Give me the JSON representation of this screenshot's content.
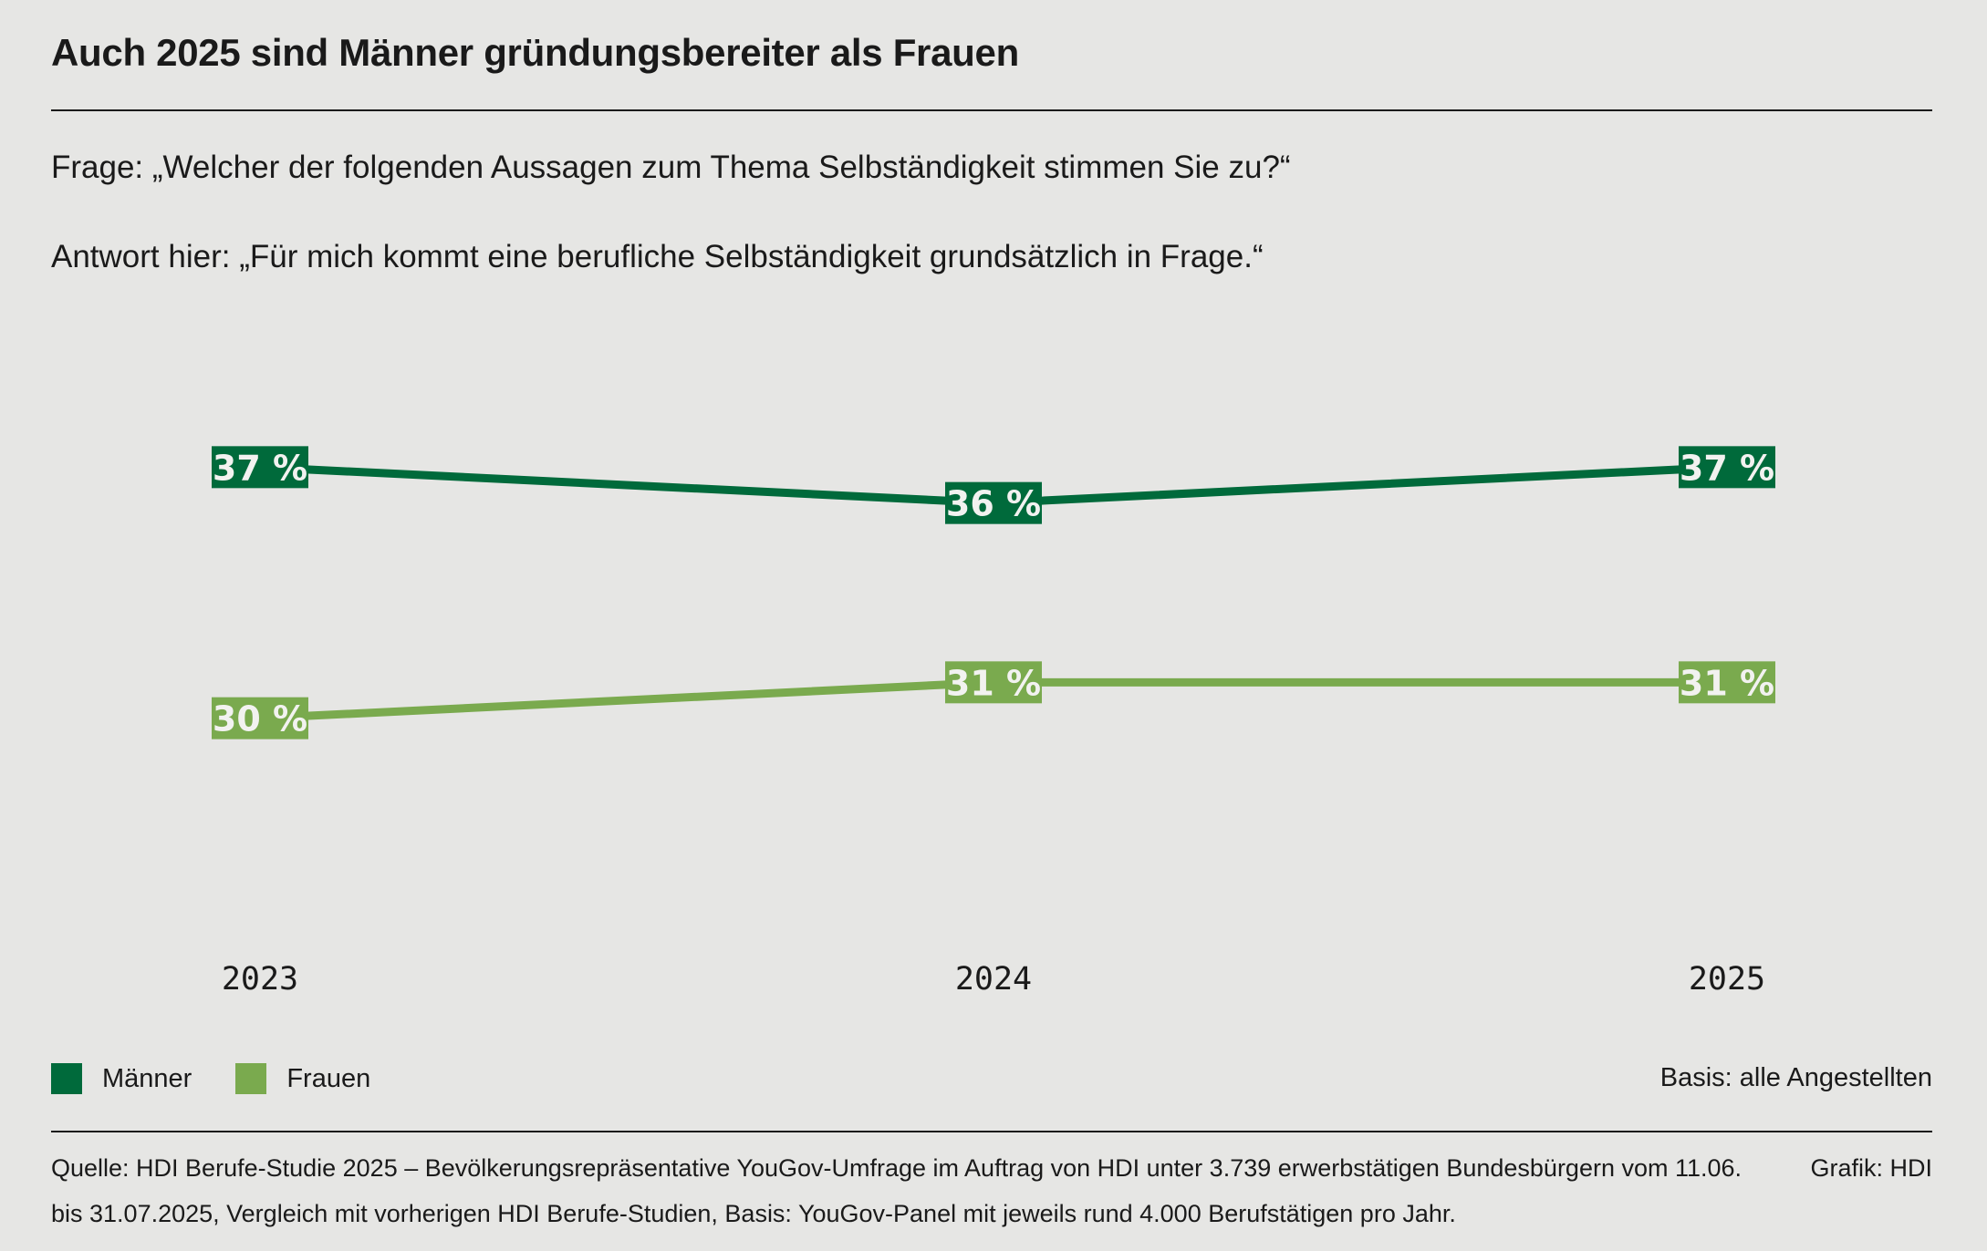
{
  "title": "Auch 2025 sind Männer gründungsbereiter als Frauen",
  "question": "Frage: „Welcher der folgenden Aussagen zum Thema Selbständigkeit stimmen Sie zu?“",
  "answer": "Antwort hier: „Für mich kommt eine berufliche Selbständigkeit grundsätzlich in Frage.“",
  "legend": {
    "items": [
      {
        "label": "Männer",
        "color": "#006a3b"
      },
      {
        "label": "Frauen",
        "color": "#7aaa4e"
      }
    ]
  },
  "basis": "Basis: alle Angestellten",
  "source": "Quelle: HDI Berufe-Studie 2025 – Bevölkerungsrepräsentative YouGov-Umfrage im Auftrag von HDI unter 3.739 erwerbstätigen Bundesbürgern vom 11.06. bis 31.07.2025, Vergleich mit vorherigen HDI Berufe-Studien, Basis: YouGov-Panel mit jeweils rund 4.000 Berufstätigen pro Jahr.",
  "credit": "Grafik: HDI",
  "chart_data": {
    "type": "line",
    "x": [
      "2023",
      "2024",
      "2025"
    ],
    "series": [
      {
        "name": "Männer",
        "values": [
          37,
          36,
          37
        ],
        "labels": [
          "37 %",
          "36 %",
          "37 %"
        ],
        "color": "#006a3b"
      },
      {
        "name": "Frauen",
        "values": [
          30,
          31,
          31
        ],
        "labels": [
          "30 %",
          "31 %",
          "31 %"
        ],
        "color": "#7aaa4e"
      }
    ],
    "ylim": [
      26,
      41
    ],
    "grid": false,
    "legend_placement": "bottom-left"
  }
}
